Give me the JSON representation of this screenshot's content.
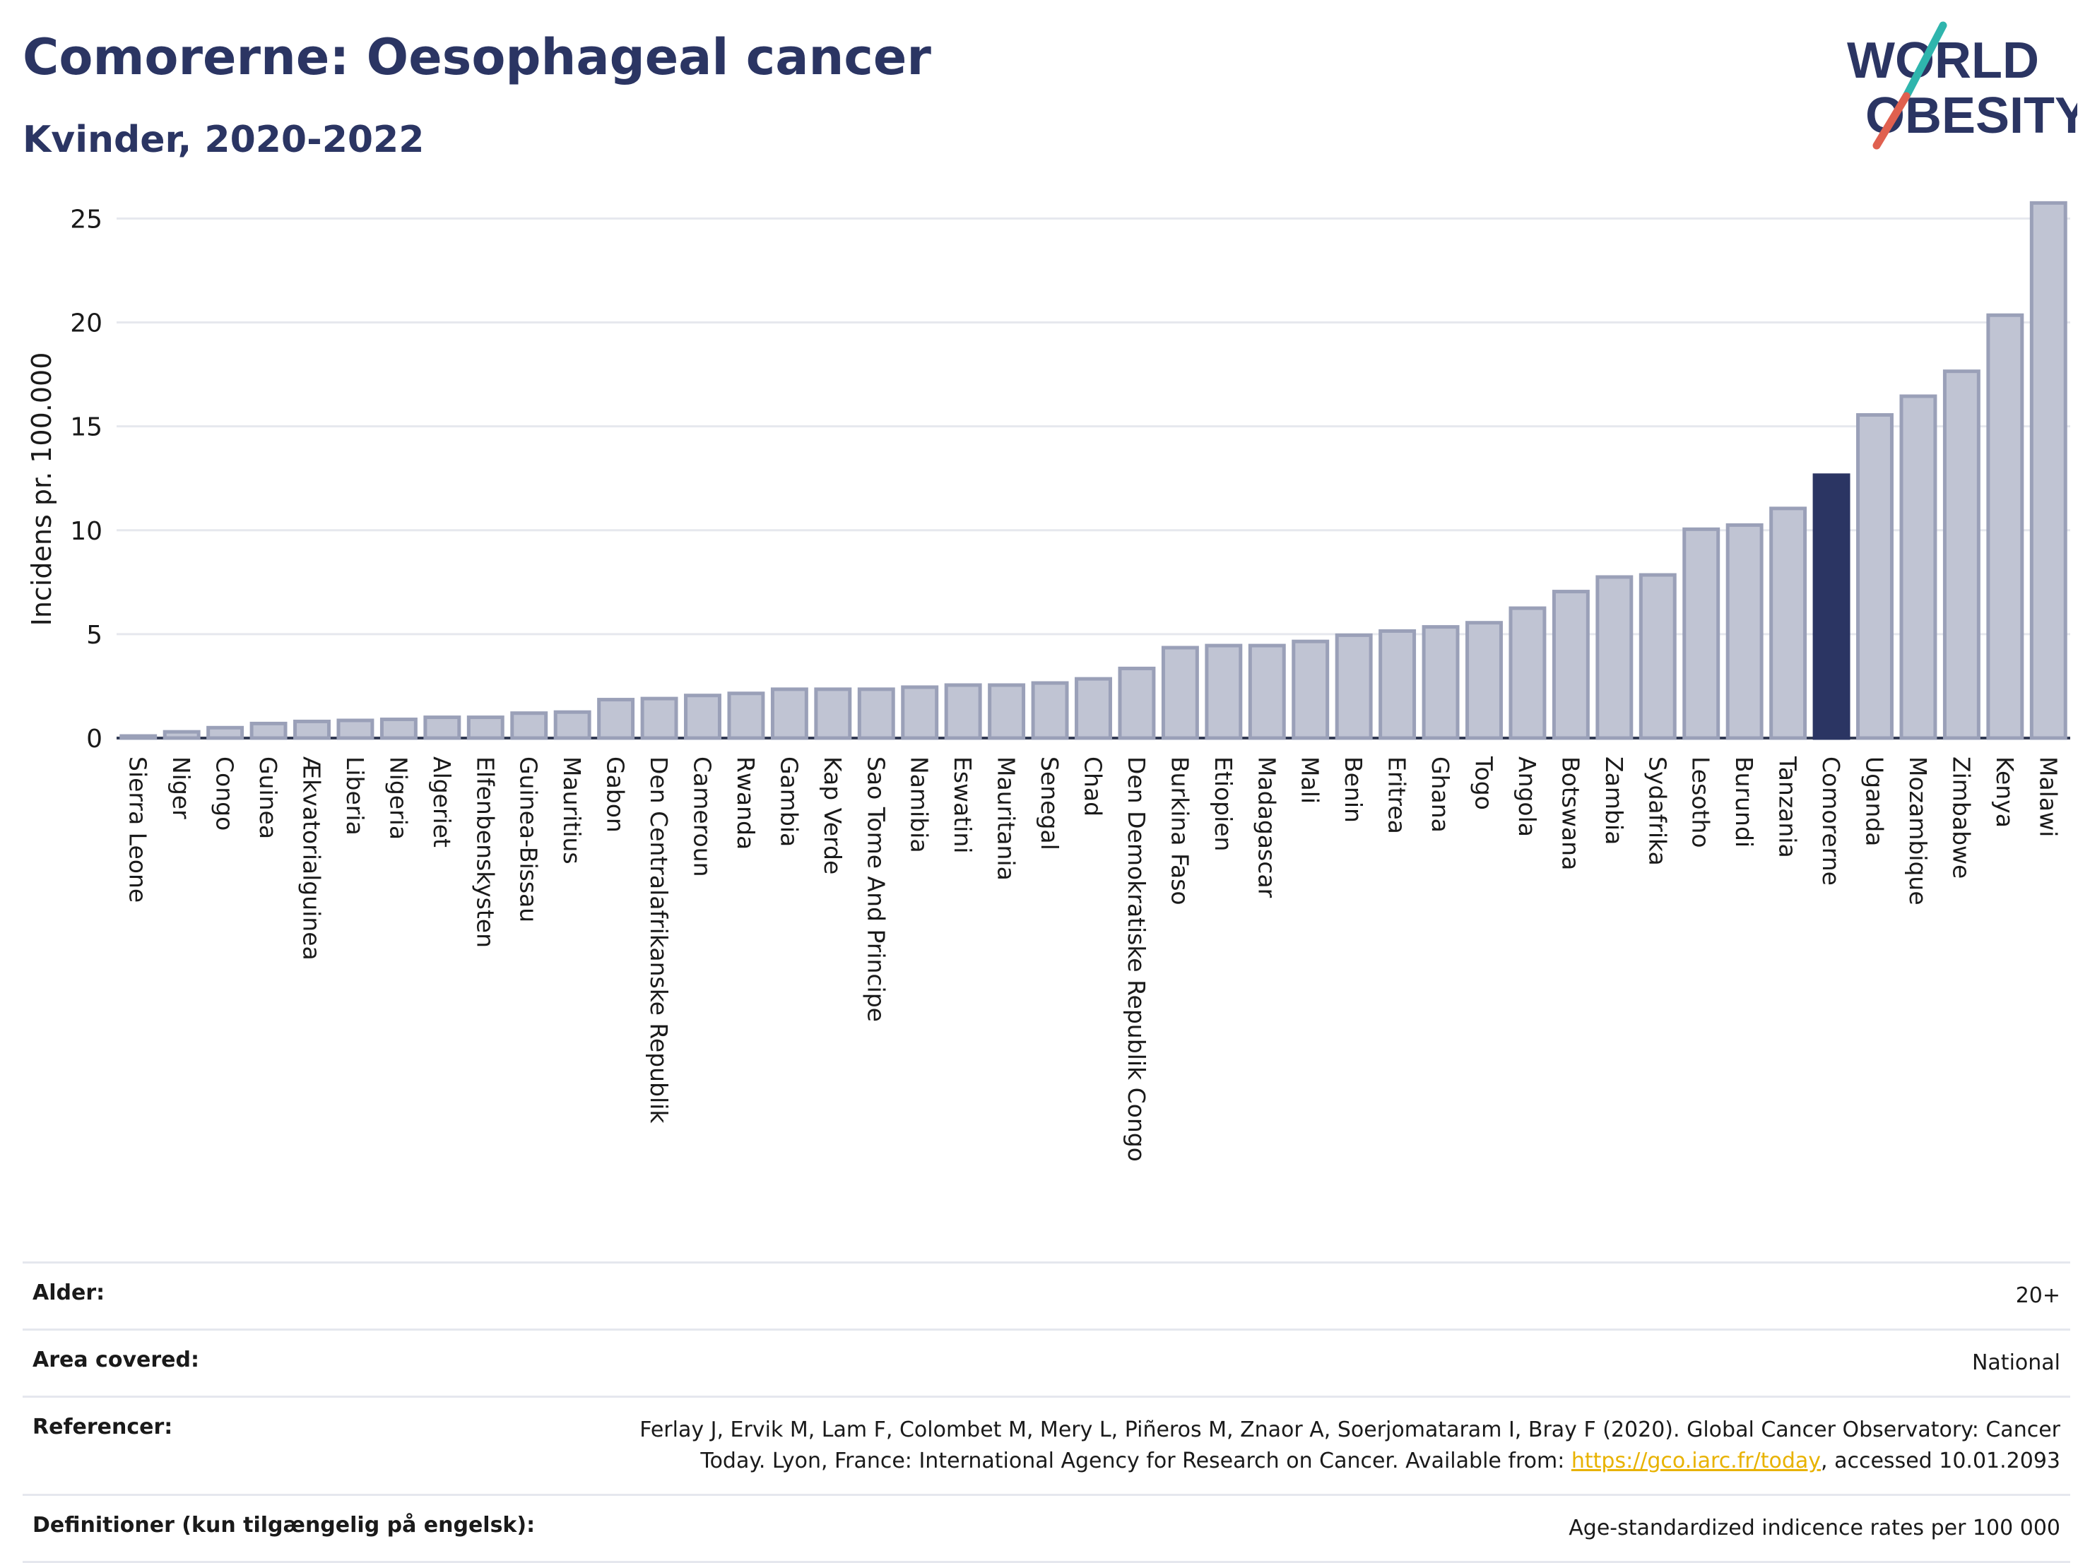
{
  "header": {
    "title": "Comorerne: Oesophageal cancer",
    "subtitle": "Kvinder, 2020-2022"
  },
  "logo": {
    "line1": "WORLD",
    "line2": "OBESITY",
    "colors": {
      "text": "#2b3563",
      "accent_teal": "#2fb5ad",
      "accent_red": "#e0604f"
    }
  },
  "colors": {
    "bar_default": "#c0c4d3",
    "bar_default_border": "#9aa0b8",
    "bar_highlight": "#2b3563",
    "grid": "#e6e8ee",
    "axis": "#333b55"
  },
  "chart_data": {
    "type": "bar",
    "title": "",
    "xlabel": "",
    "ylabel": "Incidens pr. 100.000",
    "ylim": [
      0,
      26
    ],
    "yticks": [
      0,
      5,
      10,
      15,
      20,
      25
    ],
    "grid": true,
    "highlight": "Comorerne",
    "categories": [
      "Sierra Leone",
      "Niger",
      "Congo",
      "Guinea",
      "Ækvatorialguinea",
      "Liberia",
      "Nigeria",
      "Algeriet",
      "Elfenbenskysten",
      "Guinea-Bissau",
      "Mauritius",
      "Gabon",
      "Den Centralafrikanske Republik",
      "Cameroun",
      "Rwanda",
      "Gambia",
      "Kap Verde",
      "Sao Tome And Principe",
      "Namibia",
      "Eswatini",
      "Mauritania",
      "Senegal",
      "Chad",
      "Den Demokratiske Republik Congo",
      "Burkina Faso",
      "Etiopien",
      "Madagascar",
      "Mali",
      "Benin",
      "Eritrea",
      "Ghana",
      "Togo",
      "Angola",
      "Botswana",
      "Zambia",
      "Sydafrika",
      "Lesotho",
      "Burundi",
      "Tanzania",
      "Comorerne",
      "Uganda",
      "Mozambique",
      "Zimbabwe",
      "Kenya",
      "Malawi"
    ],
    "values": [
      0.1,
      0.3,
      0.5,
      0.7,
      0.8,
      0.85,
      0.9,
      1.0,
      1.0,
      1.2,
      1.25,
      1.85,
      1.9,
      2.05,
      2.15,
      2.35,
      2.35,
      2.35,
      2.45,
      2.55,
      2.55,
      2.65,
      2.85,
      3.35,
      4.35,
      4.45,
      4.45,
      4.65,
      4.95,
      5.15,
      5.35,
      5.55,
      6.25,
      7.05,
      7.75,
      7.85,
      10.05,
      10.25,
      11.05,
      12.65,
      15.55,
      16.45,
      17.65,
      20.35,
      25.75
    ]
  },
  "info": [
    {
      "label": "Alder:",
      "value": "20+"
    },
    {
      "label": "Area covered:",
      "value": "National"
    },
    {
      "label": "Referencer:",
      "value_before": "Ferlay J, Ervik M, Lam F, Colombet M, Mery L, Piñeros M, Znaor A, Soerjomataram I, Bray F (2020). Global Cancer Observatory: Cancer Today. Lyon, France: International Agency for Research on Cancer. Available from: ",
      "link": "https://gco.iarc.fr/today",
      "value_after": ", accessed 10.01.2093"
    },
    {
      "label": "Definitioner (kun tilgængelig på engelsk):",
      "value": "Age-standardized indicence rates per 100 000"
    }
  ]
}
